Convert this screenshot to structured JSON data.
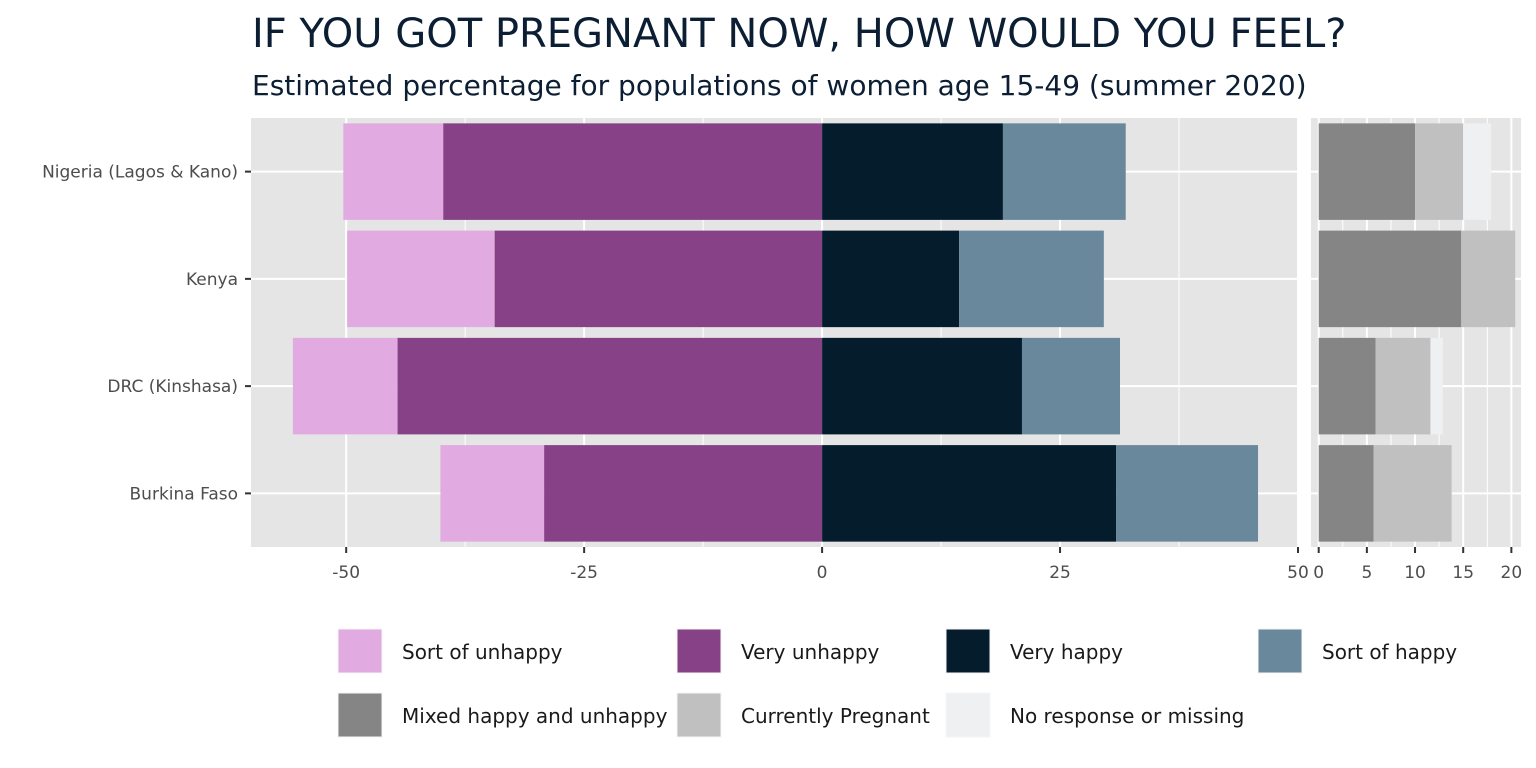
{
  "chart_data": {
    "type": "bar",
    "orientation": "horizontal",
    "title": "IF YOU GOT PREGNANT NOW, HOW WOULD YOU FEEL?",
    "subtitle": "Estimated percentage for populations of women age 15-49 (summer 2020)",
    "categories": [
      "Nigeria (Lagos & Kano)",
      "Kenya",
      "DRC (Kinshasa)",
      "Burkina Faso"
    ],
    "panels": [
      {
        "name": "diverging",
        "xlim": [
          -60,
          50
        ],
        "xticks": [
          -50,
          -25,
          0,
          25,
          50
        ],
        "xtick_labels": [
          "-50",
          "-25",
          "0",
          "25",
          "50"
        ],
        "series": [
          {
            "name": "Sort of unhappy",
            "color": "#e1aae0",
            "start": [
              -50.3,
              -49.9,
              -55.6,
              -40.1
            ],
            "end": [
              -39.8,
              -34.4,
              -44.6,
              -29.2
            ]
          },
          {
            "name": "Very unhappy",
            "color": "#864187",
            "start": [
              -39.8,
              -34.4,
              -44.6,
              -29.2
            ],
            "end": [
              0,
              0,
              0,
              0
            ]
          },
          {
            "name": "Very happy",
            "color": "#051c2c",
            "start": [
              0,
              0,
              0,
              0
            ],
            "end": [
              19,
              14.4,
              21,
              30.9
            ]
          },
          {
            "name": "Sort of happy",
            "color": "#69889c",
            "start": [
              19,
              14.4,
              21,
              30.9
            ],
            "end": [
              31.9,
              29.6,
              31.3,
              45.8
            ]
          }
        ]
      },
      {
        "name": "other",
        "xlim": [
          -0.8,
          21
        ],
        "xticks": [
          0,
          5,
          10,
          15,
          20
        ],
        "xtick_labels": [
          "0",
          "5",
          "10",
          "15",
          "20"
        ],
        "series": [
          {
            "name": "Mixed happy and unhappy",
            "color": "#858585",
            "start": [
              0,
              0,
              0,
              0
            ],
            "end": [
              10,
              14.8,
              5.9,
              5.7
            ]
          },
          {
            "name": "Currently Pregnant",
            "color": "#c0c0c0",
            "start": [
              10,
              14.8,
              5.9,
              5.7
            ],
            "end": [
              15,
              20.4,
              11.6,
              13.8
            ]
          },
          {
            "name": "No response or missing",
            "color": "#eef0f2",
            "start": [
              15,
              20.4,
              11.6,
              13.8
            ],
            "end": [
              17.9,
              20.4,
              12.9,
              13.8
            ]
          }
        ]
      }
    ],
    "legend": [
      {
        "name": "Sort of unhappy",
        "color": "#e1aae0"
      },
      {
        "name": "Very unhappy",
        "color": "#864187"
      },
      {
        "name": "Very happy",
        "color": "#051c2c"
      },
      {
        "name": "Sort of happy",
        "color": "#69889c"
      },
      {
        "name": "Mixed happy and unhappy",
        "color": "#858585"
      },
      {
        "name": "Currently Pregnant",
        "color": "#c0c0c0"
      },
      {
        "name": "No response or missing",
        "color": "#eef0f2"
      }
    ],
    "legend_position": "bottom",
    "grid": true,
    "panel_background": "#e5e5e5"
  }
}
